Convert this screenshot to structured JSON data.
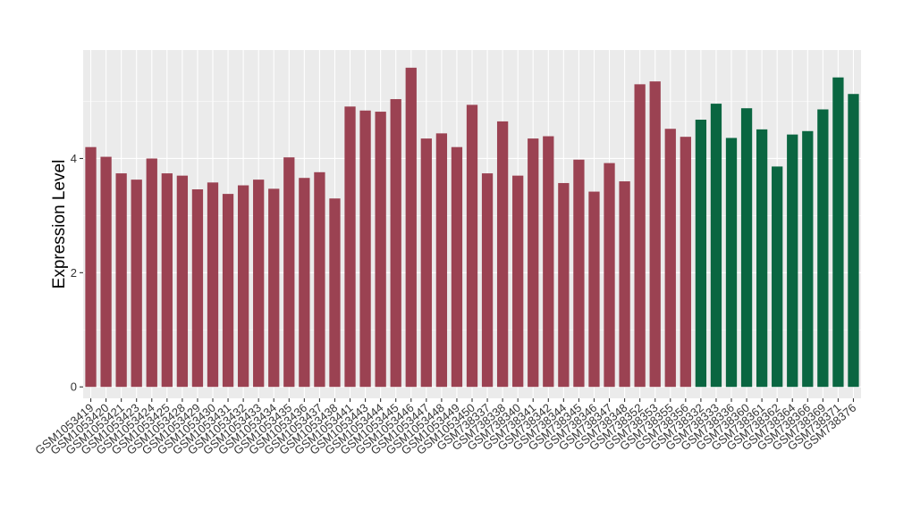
{
  "chart_data": {
    "type": "bar",
    "title": "",
    "xlabel": "",
    "ylabel": "Expression Level",
    "ylim": [
      -0.2,
      5.9
    ],
    "yticks": [
      0,
      2,
      4
    ],
    "ytick_labels": [
      "0",
      "2",
      "4"
    ],
    "grid": true,
    "legend": "none",
    "colors": {
      "group1": "#9b4252",
      "group2": "#0a6641",
      "panel": "#ebebeb",
      "grid": "#ffffff"
    },
    "categories": [
      "GSM1053419",
      "GSM1053420",
      "GSM1053421",
      "GSM1053423",
      "GSM1053424",
      "GSM1053425",
      "GSM1053428",
      "GSM1053429",
      "GSM1053430",
      "GSM1053431",
      "GSM1053432",
      "GSM1053433",
      "GSM1053434",
      "GSM1053435",
      "GSM1053436",
      "GSM1053437",
      "GSM1053438",
      "GSM1053441",
      "GSM1053443",
      "GSM1053444",
      "GSM1053445",
      "GSM1053446",
      "GSM1053447",
      "GSM1053448",
      "GSM1053449",
      "GSM1053450",
      "GSM738337",
      "GSM738338",
      "GSM738340",
      "GSM738341",
      "GSM738342",
      "GSM738344",
      "GSM738345",
      "GSM738346",
      "GSM738347",
      "GSM738348",
      "GSM738352",
      "GSM738353",
      "GSM738355",
      "GSM738356",
      "GSM738332",
      "GSM738333",
      "GSM738336",
      "GSM738360",
      "GSM738361",
      "GSM738362",
      "GSM738364",
      "GSM738366",
      "GSM738369",
      "GSM738371",
      "GSM738376"
    ],
    "values": [
      4.2,
      4.03,
      3.74,
      3.63,
      4.0,
      3.74,
      3.7,
      3.46,
      3.58,
      3.38,
      3.53,
      3.63,
      3.47,
      4.02,
      3.66,
      3.76,
      3.3,
      4.91,
      4.84,
      4.82,
      5.04,
      5.59,
      4.35,
      4.44,
      4.2,
      4.94,
      3.74,
      4.65,
      3.7,
      4.35,
      4.39,
      3.57,
      3.98,
      3.42,
      3.92,
      3.6,
      5.3,
      5.35,
      4.52,
      4.38,
      4.68,
      4.96,
      4.36,
      4.88,
      4.51,
      3.86,
      4.42,
      4.48,
      4.86,
      5.42,
      5.13
    ],
    "groups": [
      "group1",
      "group1",
      "group1",
      "group1",
      "group1",
      "group1",
      "group1",
      "group1",
      "group1",
      "group1",
      "group1",
      "group1",
      "group1",
      "group1",
      "group1",
      "group1",
      "group1",
      "group1",
      "group1",
      "group1",
      "group1",
      "group1",
      "group1",
      "group1",
      "group1",
      "group1",
      "group1",
      "group1",
      "group1",
      "group1",
      "group1",
      "group1",
      "group1",
      "group1",
      "group1",
      "group1",
      "group1",
      "group1",
      "group1",
      "group1",
      "group2",
      "group2",
      "group2",
      "group2",
      "group2",
      "group2",
      "group2",
      "group2",
      "group2",
      "group2",
      "group2"
    ]
  }
}
